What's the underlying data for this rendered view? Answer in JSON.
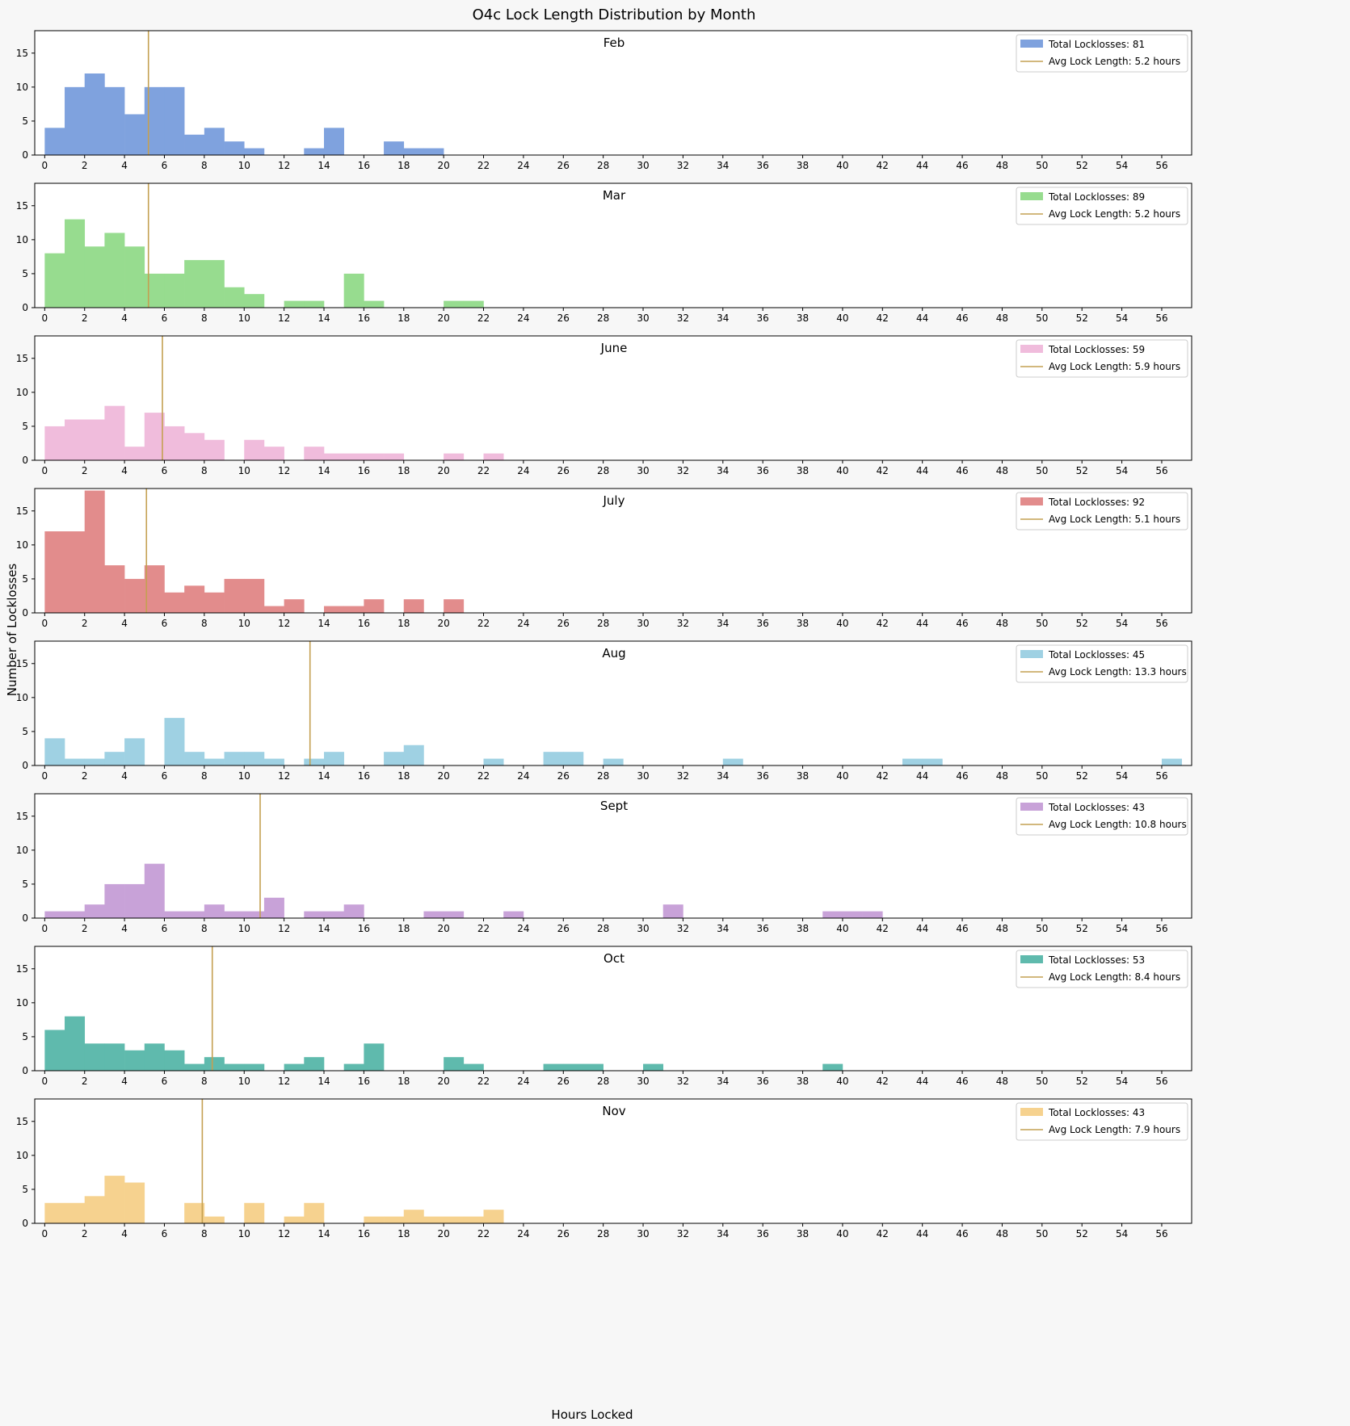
{
  "chart_data": {
    "type": "bar",
    "title": "O4c Lock Length Distribution by Month",
    "xlabel": "Hours Locked",
    "ylabel": "Number of Locklosses",
    "xlim": [
      -0.5,
      57.5
    ],
    "ylim": [
      0,
      18.3
    ],
    "xticks": [
      0,
      2,
      4,
      6,
      8,
      10,
      12,
      14,
      16,
      18,
      20,
      22,
      24,
      26,
      28,
      30,
      32,
      34,
      36,
      38,
      40,
      42,
      44,
      46,
      48,
      50,
      52,
      54,
      56
    ],
    "yticks": [
      0,
      5,
      10,
      15
    ],
    "bin_width_hours": 1,
    "avg_line_color": "#c4a052",
    "legend_placement": "top-right",
    "panels": [
      {
        "month": "Feb",
        "color": "#7fa2de",
        "total_label": "Total Locklosses: 81",
        "avg_label": "Avg Lock Length: 5.2 hours",
        "avg": 5.2,
        "bins": {
          "0": 4,
          "1": 10,
          "2": 12,
          "3": 10,
          "4": 6,
          "5": 10,
          "6": 10,
          "7": 3,
          "8": 4,
          "9": 2,
          "10": 1,
          "13": 1,
          "14": 4,
          "17": 2,
          "18": 1,
          "19": 1
        }
      },
      {
        "month": "Mar",
        "color": "#97dc8f",
        "total_label": "Total Locklosses: 89",
        "avg_label": "Avg Lock Length: 5.2 hours",
        "avg": 5.2,
        "bins": {
          "0": 8,
          "1": 13,
          "2": 9,
          "3": 11,
          "4": 9,
          "5": 5,
          "6": 5,
          "7": 7,
          "8": 7,
          "9": 3,
          "10": 2,
          "12": 1,
          "13": 1,
          "15": 5,
          "16": 1,
          "20": 1,
          "21": 1
        }
      },
      {
        "month": "June",
        "color": "#f0bcdc",
        "total_label": "Total Locklosses: 59",
        "avg_label": "Avg Lock Length: 5.9 hours",
        "avg": 5.9,
        "bins": {
          "0": 5,
          "1": 6,
          "2": 6,
          "3": 8,
          "4": 2,
          "5": 7,
          "6": 5,
          "7": 4,
          "8": 3,
          "10": 3,
          "11": 2,
          "13": 2,
          "14": 1,
          "15": 1,
          "16": 1,
          "17": 1,
          "20": 1,
          "22": 1
        }
      },
      {
        "month": "July",
        "color": "#e28c8c",
        "total_label": "Total Locklosses: 92",
        "avg_label": "Avg Lock Length: 5.1 hours",
        "avg": 5.1,
        "bins": {
          "0": 12,
          "1": 12,
          "2": 18,
          "3": 7,
          "4": 5,
          "5": 7,
          "6": 3,
          "7": 4,
          "8": 3,
          "9": 5,
          "10": 5,
          "11": 1,
          "12": 2,
          "14": 1,
          "15": 1,
          "16": 2,
          "18": 2,
          "20": 2
        }
      },
      {
        "month": "Aug",
        "color": "#9fd1e3",
        "total_label": "Total Locklosses: 45",
        "avg_label": "Avg Lock Length: 13.3 hours",
        "avg": 13.3,
        "bins": {
          "0": 4,
          "1": 1,
          "2": 1,
          "3": 2,
          "4": 4,
          "6": 7,
          "7": 2,
          "8": 1,
          "9": 2,
          "10": 2,
          "11": 1,
          "13": 1,
          "14": 2,
          "17": 2,
          "18": 3,
          "22": 1,
          "25": 2,
          "26": 2,
          "28": 1,
          "34": 1,
          "43": 1,
          "44": 1,
          "56": 1
        }
      },
      {
        "month": "Sept",
        "color": "#c8a2d8",
        "total_label": "Total Locklosses: 43",
        "avg_label": "Avg Lock Length: 10.8 hours",
        "avg": 10.8,
        "bins": {
          "0": 1,
          "1": 1,
          "2": 2,
          "3": 5,
          "4": 5,
          "5": 8,
          "6": 1,
          "7": 1,
          "8": 2,
          "9": 1,
          "10": 1,
          "11": 3,
          "13": 1,
          "14": 1,
          "15": 2,
          "19": 1,
          "20": 1,
          "23": 1,
          "31": 2,
          "39": 1,
          "40": 1,
          "41": 1
        }
      },
      {
        "month": "Oct",
        "color": "#5fbaad",
        "total_label": "Total Locklosses: 53",
        "avg_label": "Avg Lock Length: 8.4 hours",
        "avg": 8.4,
        "bins": {
          "0": 6,
          "1": 8,
          "2": 4,
          "3": 4,
          "4": 3,
          "5": 4,
          "6": 3,
          "7": 1,
          "8": 2,
          "9": 1,
          "10": 1,
          "12": 1,
          "13": 2,
          "15": 1,
          "16": 4,
          "20": 2,
          "21": 1,
          "25": 1,
          "26": 1,
          "27": 1,
          "30": 1,
          "39": 1
        }
      },
      {
        "month": "Nov",
        "color": "#f6d28f",
        "total_label": "Total Locklosses: 43",
        "avg_label": "Avg Lock Length: 7.9 hours",
        "avg": 7.9,
        "bins": {
          "0": 3,
          "1": 3,
          "2": 4,
          "3": 7,
          "4": 6,
          "7": 3,
          "8": 1,
          "10": 3,
          "12": 1,
          "13": 3,
          "16": 1,
          "17": 1,
          "18": 2,
          "19": 1,
          "20": 1,
          "21": 1,
          "22": 2
        }
      }
    ]
  }
}
